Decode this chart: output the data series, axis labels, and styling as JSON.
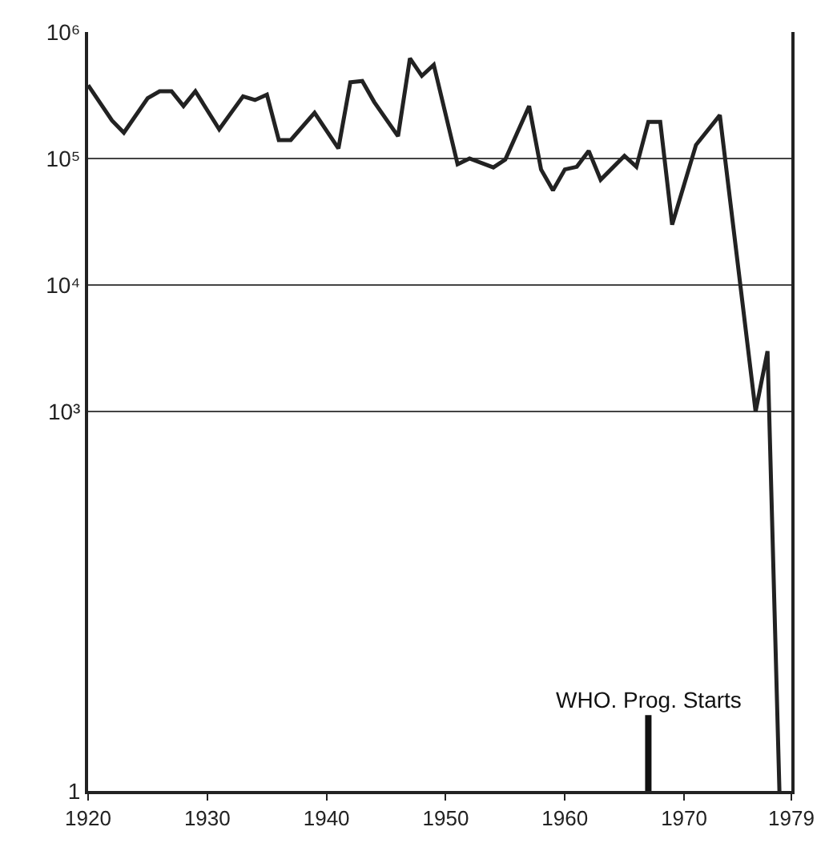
{
  "chart_data": {
    "type": "line",
    "x": [
      1920,
      1922,
      1923,
      1925,
      1926,
      1927,
      1928,
      1929,
      1931,
      1932,
      1933,
      1934,
      1935,
      1936,
      1937,
      1939,
      1941,
      1942,
      1943,
      1944,
      1946,
      1947,
      1948,
      1949,
      1951,
      1952,
      1954,
      1955,
      1957,
      1958,
      1959,
      1960,
      1961,
      1962,
      1963,
      1965,
      1966,
      1967,
      1968,
      1969,
      1971,
      1973,
      1976,
      1977,
      1978
    ],
    "series": [
      {
        "color": "#222222",
        "values": [
          380000,
          200000,
          160000,
          300000,
          340000,
          340000,
          260000,
          340000,
          170000,
          230000,
          310000,
          290000,
          320000,
          140000,
          140000,
          230000,
          120000,
          400000,
          410000,
          280000,
          150000,
          620000,
          450000,
          550000,
          90000,
          100000,
          85000,
          98000,
          260000,
          82000,
          56000,
          82000,
          86000,
          115000,
          68000,
          105000,
          86000,
          195000,
          195000,
          30000,
          128000,
          220000,
          1000,
          3000,
          1
        ]
      }
    ],
    "log": "y",
    "xlim": [
      1920,
      1979
    ],
    "ylim": [
      1,
      1000000
    ],
    "xticks": [
      1920,
      1930,
      1940,
      1950,
      1960,
      1970,
      1979
    ],
    "yticks": [
      1,
      {
        "value": 1000,
        "label": "10³"
      },
      {
        "value": 10000,
        "label": "10⁴"
      },
      {
        "value": 100000,
        "label": "10⁵"
      },
      {
        "value": 1000000,
        "label": "10⁶"
      }
    ],
    "grid": "y",
    "marker": "none",
    "line_style": "solid",
    "ref_lines": [
      {
        "axis": "x",
        "value": 1967,
        "label": "WHO. Prog. Starts"
      }
    ]
  }
}
